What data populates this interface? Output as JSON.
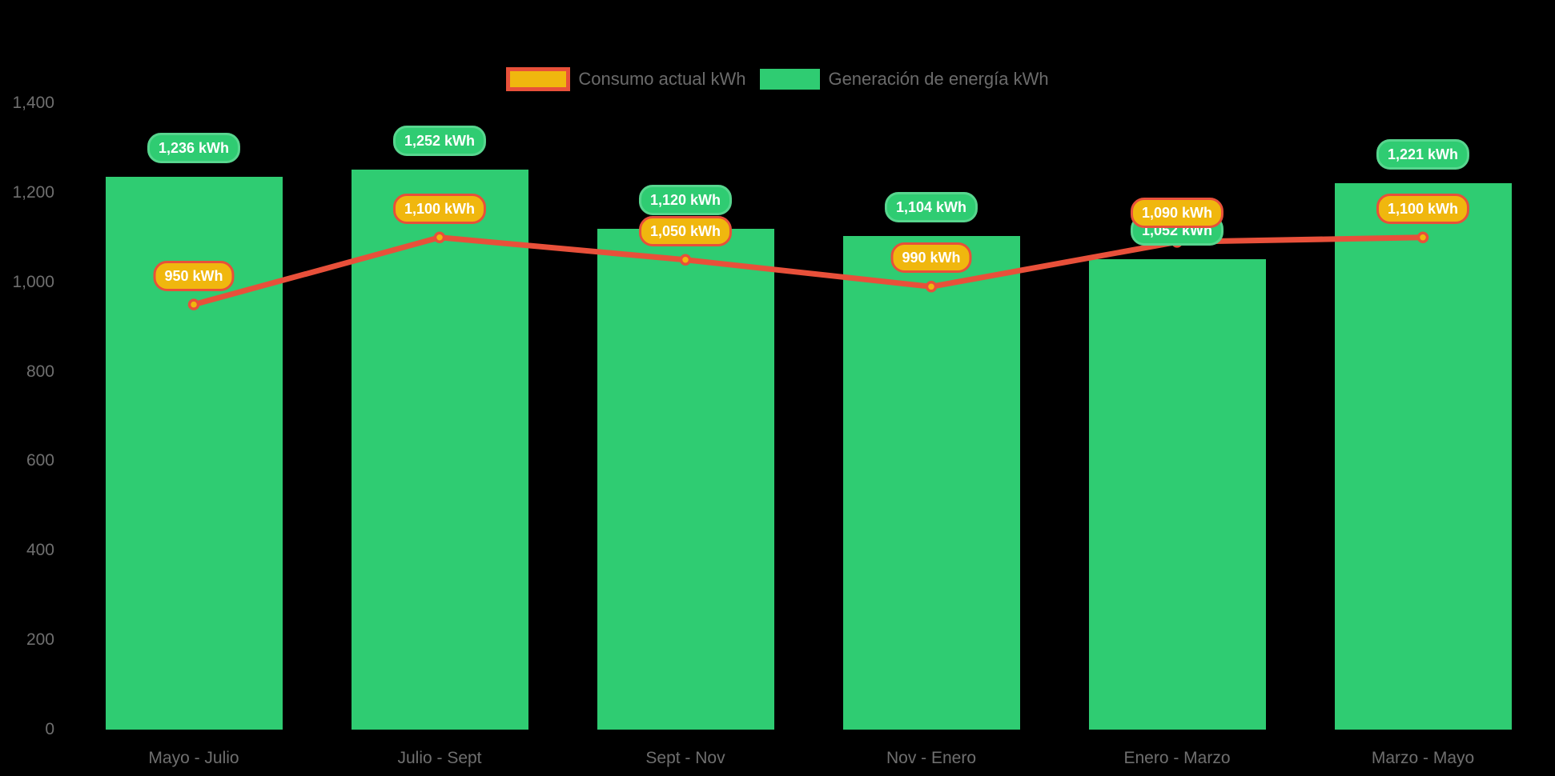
{
  "chart_data": {
    "type": "bar",
    "title": "",
    "categories": [
      "Mayo - Julio",
      "Julio - Sept",
      "Sept - Nov",
      "Nov - Enero",
      "Enero - Marzo",
      "Marzo - Mayo"
    ],
    "series": [
      {
        "name": "Generación de energía kWh",
        "type": "bar",
        "color": "#2fcc72",
        "values": [
          1236,
          1252,
          1120,
          1104,
          1052,
          1221
        ],
        "data_labels": [
          "1,236 kWh",
          "1,252 kWh",
          "1,120 kWh",
          "1,104 kWh",
          "1,052 kWh",
          "1,221 kWh"
        ]
      },
      {
        "name": "Consumo actual kWh",
        "type": "line",
        "color": "#e8503a",
        "point_fill": "#f0b70e",
        "values": [
          950,
          1100,
          1050,
          990,
          1090,
          1100
        ],
        "data_labels": [
          "950 kWh",
          "1,100 kWh",
          "1,050 kWh",
          "990 kWh",
          "1,090 kWh",
          "1,100 kWh"
        ]
      }
    ],
    "ylim": [
      0,
      1400
    ],
    "yticks": [
      0,
      200,
      400,
      600,
      800,
      1000,
      1200,
      1400
    ],
    "ytick_labels": [
      "0",
      "200",
      "400",
      "600",
      "800",
      "1,000",
      "1,200",
      "1,400"
    ],
    "grid": false,
    "legend_position": "top-center",
    "legend": [
      {
        "label": "Consumo actual kWh",
        "fill": "#f0b70e",
        "border": "#e8503a"
      },
      {
        "label": "Generación de energía kWh",
        "fill": "#2fcc72",
        "border": "#2fcc72"
      }
    ],
    "colors": {
      "bar_green": "#2fcc72",
      "pill_green_border": "#57d68e",
      "line_red": "#e8503a",
      "point_orange": "#f0b70e",
      "axis_text": "#6f6f6f",
      "background": "#000000"
    }
  }
}
